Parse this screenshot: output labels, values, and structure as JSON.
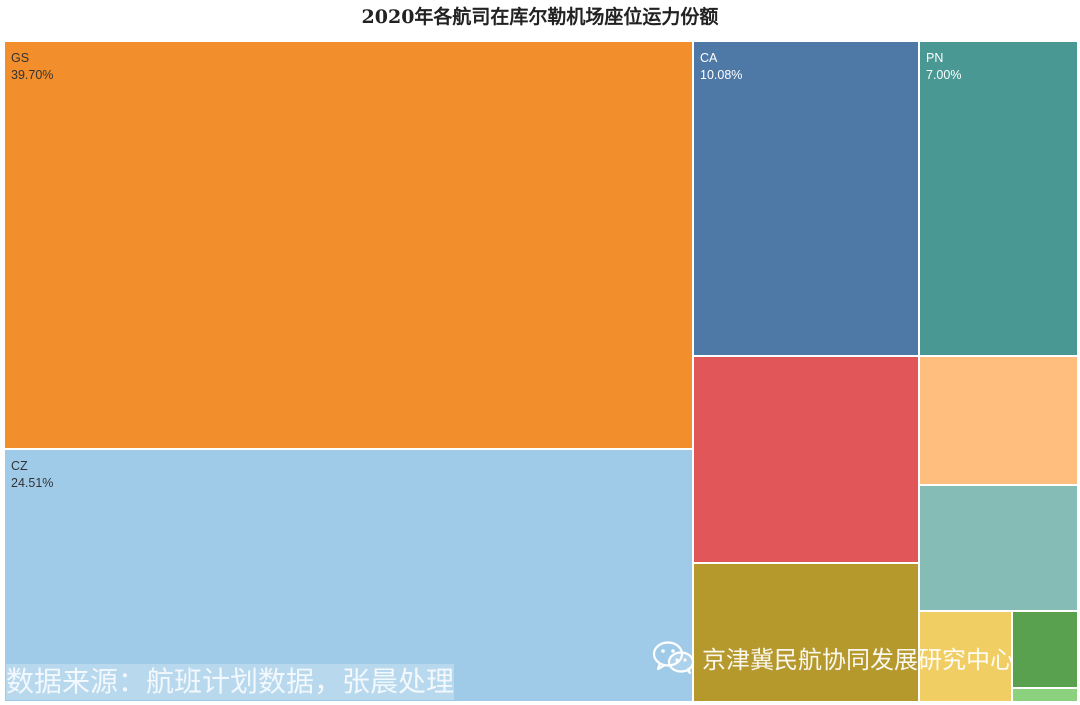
{
  "chart_data": {
    "type": "treemap",
    "title": "2020年各航司在库尔勒机场座位运力份额",
    "items": [
      {
        "name": "GS",
        "label": "39.70%",
        "value": 39.7,
        "color": "#F28E2B",
        "text_color": "#333333"
      },
      {
        "name": "CZ",
        "label": "24.51%",
        "value": 24.51,
        "color": "#A0CBE8",
        "text_color": "#333333"
      },
      {
        "name": "CA",
        "label": "10.08%",
        "value": 10.08,
        "color": "#4E79A7",
        "text_color": "#ffffff"
      },
      {
        "name": "PN",
        "label": "7.00%",
        "value": 7.0,
        "color": "#499894",
        "text_color": "#ffffff"
      },
      {
        "name": "",
        "label": "",
        "value": 6.4,
        "color": "#E15759",
        "text_color": "#ffffff"
      },
      {
        "name": "",
        "label": "",
        "value": 4.3,
        "color": "#B6992D",
        "text_color": "#ffffff"
      },
      {
        "name": "",
        "label": "",
        "value": 2.8,
        "color": "#FFBE7D",
        "text_color": "#333333"
      },
      {
        "name": "",
        "label": "",
        "value": 2.4,
        "color": "#86BCB6",
        "text_color": "#333333"
      },
      {
        "name": "",
        "label": "",
        "value": 1.6,
        "color": "#F1CE63",
        "text_color": "#333333"
      },
      {
        "name": "",
        "label": "",
        "value": 0.8,
        "color": "#59A14F",
        "text_color": "#ffffff"
      },
      {
        "name": "",
        "label": "",
        "value": 0.2,
        "color": "#8CD17D",
        "text_color": "#333333"
      }
    ]
  },
  "source_note": "数据来源：航班计划数据，张晨处理",
  "watermark": "京津冀民航协同发展研究中心",
  "watermark_icon": "wechat-icon"
}
